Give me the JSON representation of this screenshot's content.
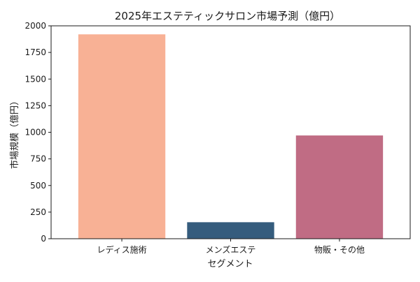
{
  "chart_data": {
    "type": "bar",
    "title": "2025年エステティックサロン市場予測（億円）",
    "xlabel": "セグメント",
    "ylabel": "市場規模（億円）",
    "categories": [
      "レディス施術",
      "メンズエステ",
      "物販・その他"
    ],
    "values": [
      1920,
      155,
      970
    ],
    "colors": [
      "#f8b195",
      "#355c7d",
      "#c06c84"
    ],
    "ylim": [
      0,
      2000
    ],
    "yticks": [
      0,
      250,
      500,
      750,
      1000,
      1250,
      1500,
      1750,
      2000
    ],
    "grid": false,
    "legend": "none"
  }
}
